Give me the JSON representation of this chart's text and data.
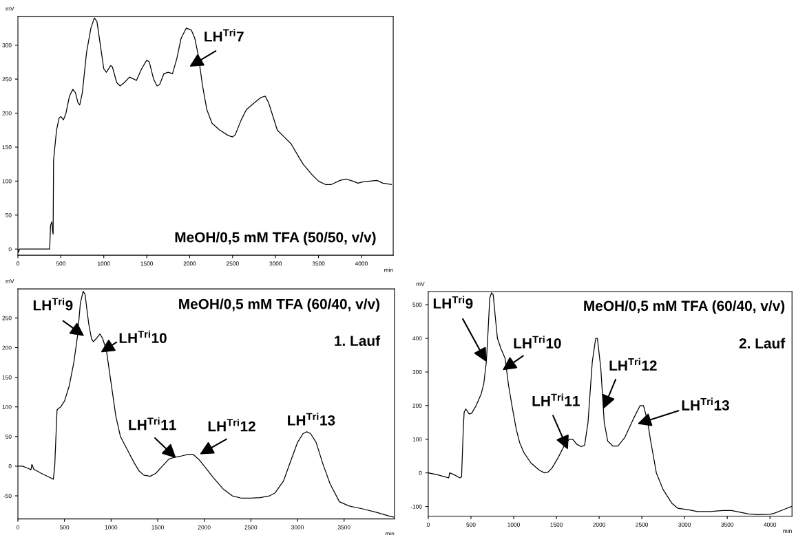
{
  "chart_data": [
    {
      "type": "line",
      "xlabel": "min",
      "ylabel": "mV",
      "xlim": [
        0,
        4370
      ],
      "ylim": [
        -9,
        342
      ],
      "xticks": [
        0,
        500,
        1000,
        1500,
        2000,
        2500,
        3000,
        3500,
        4000
      ],
      "yticks": [
        0,
        50,
        100,
        150,
        200,
        250,
        300
      ],
      "grid": false,
      "legend": false,
      "marker": "none",
      "line_style": "solid",
      "annotations": [
        "LH$^{Tri}$7",
        "MeOH/0,5 mM TFA (50/50, v/v)"
      ],
      "series": [
        {
          "color": "#000000",
          "x": [
            0,
            5,
            20,
            200,
            370,
            380,
            395,
            405,
            410,
            415,
            430,
            450,
            480,
            500,
            530,
            560,
            600,
            640,
            670,
            700,
            720,
            750,
            800,
            850,
            890,
            920,
            960,
            1000,
            1030,
            1080,
            1100,
            1150,
            1190,
            1240,
            1300,
            1350,
            1380,
            1440,
            1500,
            1530,
            1580,
            1620,
            1650,
            1700,
            1750,
            1800,
            1850,
            1900,
            1960,
            2020,
            2060,
            2100,
            2150,
            2200,
            2260,
            2350,
            2450,
            2500,
            2530,
            2600,
            2660,
            2750,
            2830,
            2880,
            2920,
            2970,
            3020,
            3100,
            3180,
            3250,
            3320,
            3420,
            3500,
            3580,
            3650,
            3750,
            3820,
            3900,
            3960,
            4020,
            4100,
            4180,
            4250,
            4350
          ],
          "values": [
            0,
            -5,
            0,
            0,
            0,
            35,
            40,
            25,
            22,
            130,
            150,
            175,
            193,
            195,
            190,
            200,
            225,
            235,
            230,
            215,
            212,
            230,
            290,
            325,
            340,
            335,
            300,
            265,
            260,
            270,
            268,
            245,
            240,
            245,
            253,
            250,
            248,
            265,
            278,
            275,
            250,
            240,
            242,
            258,
            260,
            258,
            280,
            310,
            325,
            322,
            310,
            285,
            240,
            205,
            185,
            175,
            167,
            165,
            168,
            190,
            205,
            215,
            223,
            225,
            215,
            195,
            175,
            165,
            155,
            140,
            125,
            110,
            100,
            95,
            95,
            101,
            103,
            100,
            97,
            99,
            100,
            101,
            97,
            95
          ]
        }
      ]
    },
    {
      "type": "line",
      "xlabel": "min",
      "ylabel": "mV",
      "xlim": [
        0,
        4040
      ],
      "ylim": [
        -89,
        299
      ],
      "xticks": [
        0,
        500,
        1000,
        1500,
        2000,
        2500,
        3000,
        3500
      ],
      "yticks": [
        -50,
        0,
        50,
        100,
        150,
        200,
        250
      ],
      "grid": false,
      "legend": false,
      "marker": "none",
      "line_style": "solid",
      "annotations": [
        "LH$^{Tri}$9",
        "LH$^{Tri}$10",
        "LH$^{Tri}$11",
        "LH$^{Tri}$12",
        "LH$^{Tri}$13",
        "MeOH/0,5 mM TFA (60/40, v/v)",
        "1. Lauf"
      ],
      "series": [
        {
          "color": "#000000",
          "x": [
            0,
            50,
            100,
            140,
            150,
            170,
            250,
            330,
            380,
            395,
            420,
            440,
            460,
            500,
            550,
            600,
            640,
            670,
            700,
            720,
            760,
            790,
            810,
            840,
            880,
            910,
            950,
            1000,
            1050,
            1100,
            1150,
            1200,
            1250,
            1300,
            1350,
            1420,
            1480,
            1550,
            1620,
            1680,
            1750,
            1830,
            1880,
            1950,
            2000,
            2100,
            2200,
            2300,
            2400,
            2500,
            2600,
            2700,
            2760,
            2850,
            2930,
            3000,
            3060,
            3100,
            3140,
            3200,
            3270,
            3350,
            3450,
            3550,
            3700,
            3850,
            4000,
            4040
          ],
          "values": [
            0,
            0,
            -3,
            -6,
            3,
            -5,
            -12,
            -18,
            -22,
            0,
            95,
            98,
            100,
            110,
            135,
            175,
            220,
            275,
            295,
            290,
            240,
            215,
            210,
            215,
            223,
            215,
            195,
            140,
            85,
            50,
            35,
            20,
            5,
            -8,
            -15,
            -17,
            -12,
            0,
            12,
            15,
            17,
            20,
            20,
            10,
            0,
            -20,
            -38,
            -50,
            -54,
            -54,
            -53,
            -50,
            -45,
            -25,
            10,
            40,
            55,
            58,
            55,
            40,
            5,
            -30,
            -60,
            -67,
            -72,
            -78,
            -85,
            -86
          ]
        }
      ]
    },
    {
      "type": "line",
      "xlabel": "min",
      "ylabel": "mV",
      "xlim": [
        0,
        4258
      ],
      "ylim": [
        -129,
        539
      ],
      "xticks": [
        0,
        500,
        1000,
        1500,
        2000,
        2500,
        3000,
        3500,
        4000
      ],
      "yticks": [
        -100,
        0,
        100,
        200,
        300,
        400,
        500
      ],
      "grid": false,
      "legend": false,
      "marker": "none",
      "line_style": "solid",
      "annotations": [
        {
          "text": "LH$^{Tri}$9",
          "x": 680,
          "y": 330
        },
        "LH$^{Tri}$10",
        "LH$^{Tri}$11",
        {
          "text": "LH$^{Tri}$12",
          "x": 2050,
          "y": 190
        },
        "LH$^{Tri}$13",
        "MeOH/0,5 mM TFA (60/40, v/v)",
        "2. Lauf"
      ],
      "series": [
        {
          "color": "#000000",
          "x": [
            0,
            100,
            200,
            240,
            250,
            300,
            370,
            390,
            410,
            420,
            440,
            480,
            510,
            560,
            620,
            650,
            680,
            700,
            720,
            740,
            760,
            790,
            810,
            850,
            900,
            940,
            980,
            1030,
            1070,
            1120,
            1200,
            1300,
            1360,
            1400,
            1450,
            1520,
            1600,
            1650,
            1690,
            1740,
            1790,
            1830,
            1870,
            1920,
            1960,
            1980,
            2020,
            2060,
            2100,
            2160,
            2220,
            2300,
            2400,
            2480,
            2520,
            2570,
            2600,
            2670,
            2750,
            2850,
            2920,
            3050,
            3150,
            3300,
            3450,
            3550,
            3650,
            3750,
            3850,
            4000,
            4050,
            4150,
            4250
          ],
          "values": [
            0,
            -5,
            -12,
            -15,
            0,
            -5,
            -15,
            -12,
            130,
            180,
            190,
            175,
            178,
            200,
            235,
            265,
            330,
            420,
            520,
            535,
            530,
            450,
            400,
            370,
            340,
            260,
            200,
            130,
            90,
            60,
            30,
            8,
            0,
            2,
            15,
            45,
            85,
            100,
            100,
            85,
            78,
            82,
            150,
            330,
            400,
            400,
            310,
            150,
            95,
            80,
            80,
            105,
            160,
            200,
            200,
            150,
            100,
            0,
            -50,
            -90,
            -105,
            -110,
            -115,
            -115,
            -112,
            -112,
            -117,
            -122,
            -124,
            -123,
            -120,
            -110,
            -100
          ]
        }
      ]
    }
  ]
}
